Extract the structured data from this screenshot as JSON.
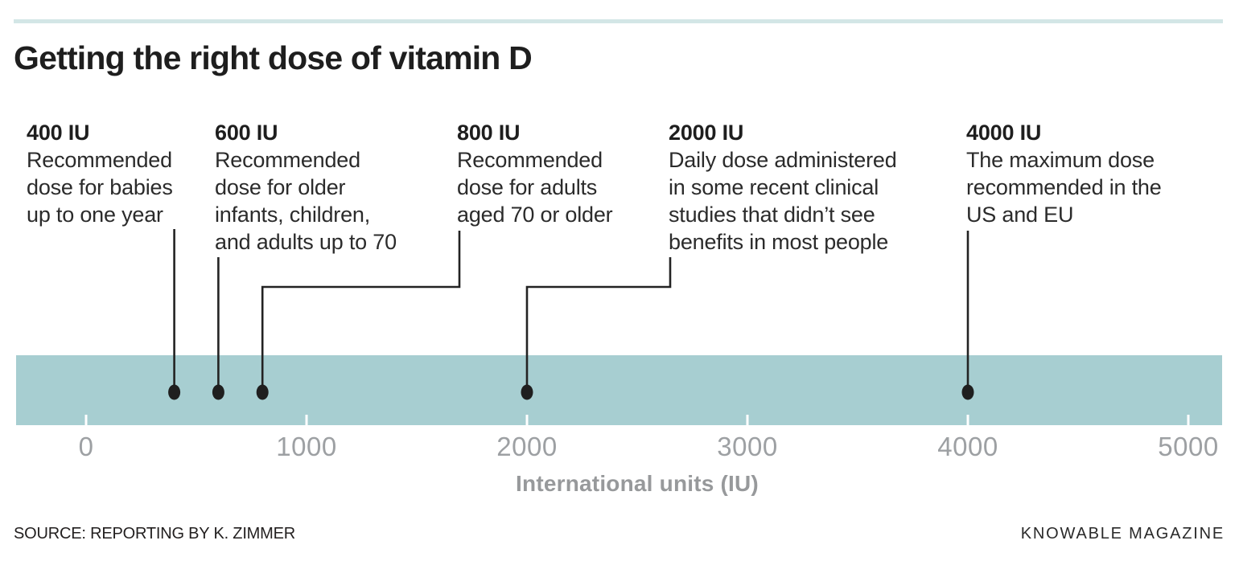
{
  "chart_data": {
    "type": "scatter",
    "title": "Getting the right dose of vitamin D",
    "xlabel": "International units (IU)",
    "xlim": [
      0,
      5000
    ],
    "x_ticks": [
      0,
      1000,
      2000,
      3000,
      4000,
      5000
    ],
    "grid": false,
    "legend": "none",
    "points": [
      {
        "x": 400,
        "label": "400 IU",
        "note_lines": [
          "Recommended",
          "dose for babies",
          "up to one year"
        ]
      },
      {
        "x": 600,
        "label": "600 IU",
        "note_lines": [
          "Recommended",
          "dose for older",
          "infants, children,",
          "and adults up to 70"
        ]
      },
      {
        "x": 800,
        "label": "800 IU",
        "note_lines": [
          "Recommended",
          "dose for adults",
          "aged 70 or older"
        ]
      },
      {
        "x": 2000,
        "label": "2000 IU",
        "note_lines": [
          "Daily dose administered",
          "in some recent clinical",
          "studies that didn’t see",
          "benefits in most people"
        ]
      },
      {
        "x": 4000,
        "label": "4000 IU",
        "note_lines": [
          "The maximum dose",
          "recommended in the",
          "US and EU"
        ]
      }
    ],
    "colors": {
      "band": "#a7ced1",
      "dot": "#1f1f1f",
      "leader_line": "#232323",
      "top_rule": "#d3e6e6",
      "axis_tick_text": "#9da0a3",
      "axis_title_text": "#97999b",
      "tick_mark": "#ffffff"
    }
  },
  "footer": {
    "source": "SOURCE: REPORTING BY K. ZIMMER",
    "credit": "KNOWABLE MAGAZINE"
  }
}
